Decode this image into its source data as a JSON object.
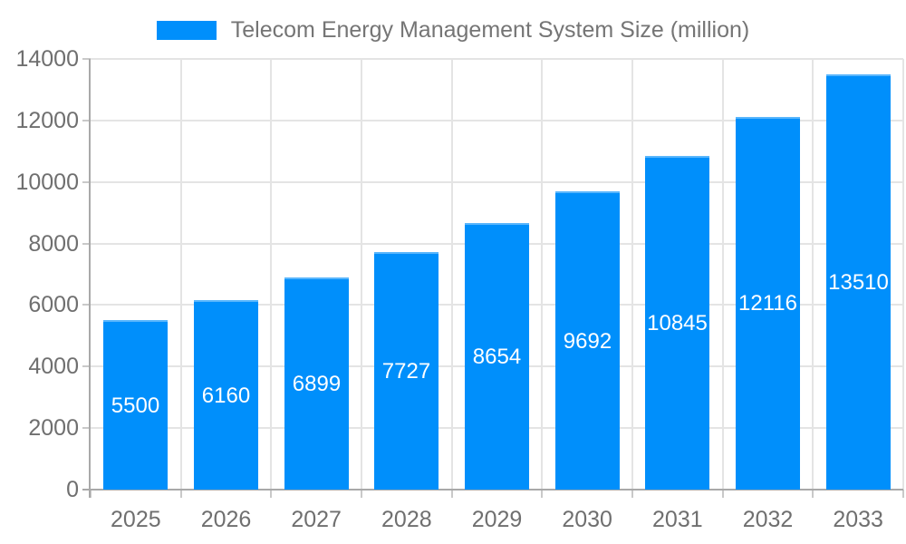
{
  "chart_data": {
    "type": "bar",
    "title": "Telecom Energy Management System Size (million)",
    "categories": [
      "2025",
      "2026",
      "2027",
      "2028",
      "2029",
      "2030",
      "2031",
      "2032",
      "2033"
    ],
    "values": [
      5500,
      6160,
      6899,
      7727,
      8654,
      9692,
      10845,
      12116,
      13510
    ],
    "xlabel": "",
    "ylabel": "",
    "ylim": [
      0,
      14000
    ],
    "yticks": [
      0,
      2000,
      4000,
      6000,
      8000,
      10000,
      12000,
      14000
    ],
    "grid": true,
    "legend_position": "top-center",
    "bar_color": "#008ffb",
    "bar_label_color": "#ffffff",
    "grid_color": "#e4e4e4",
    "axis_color": "#a9a9a9",
    "tick_label_color": "#6f6f6f",
    "title_color": "#757575"
  }
}
